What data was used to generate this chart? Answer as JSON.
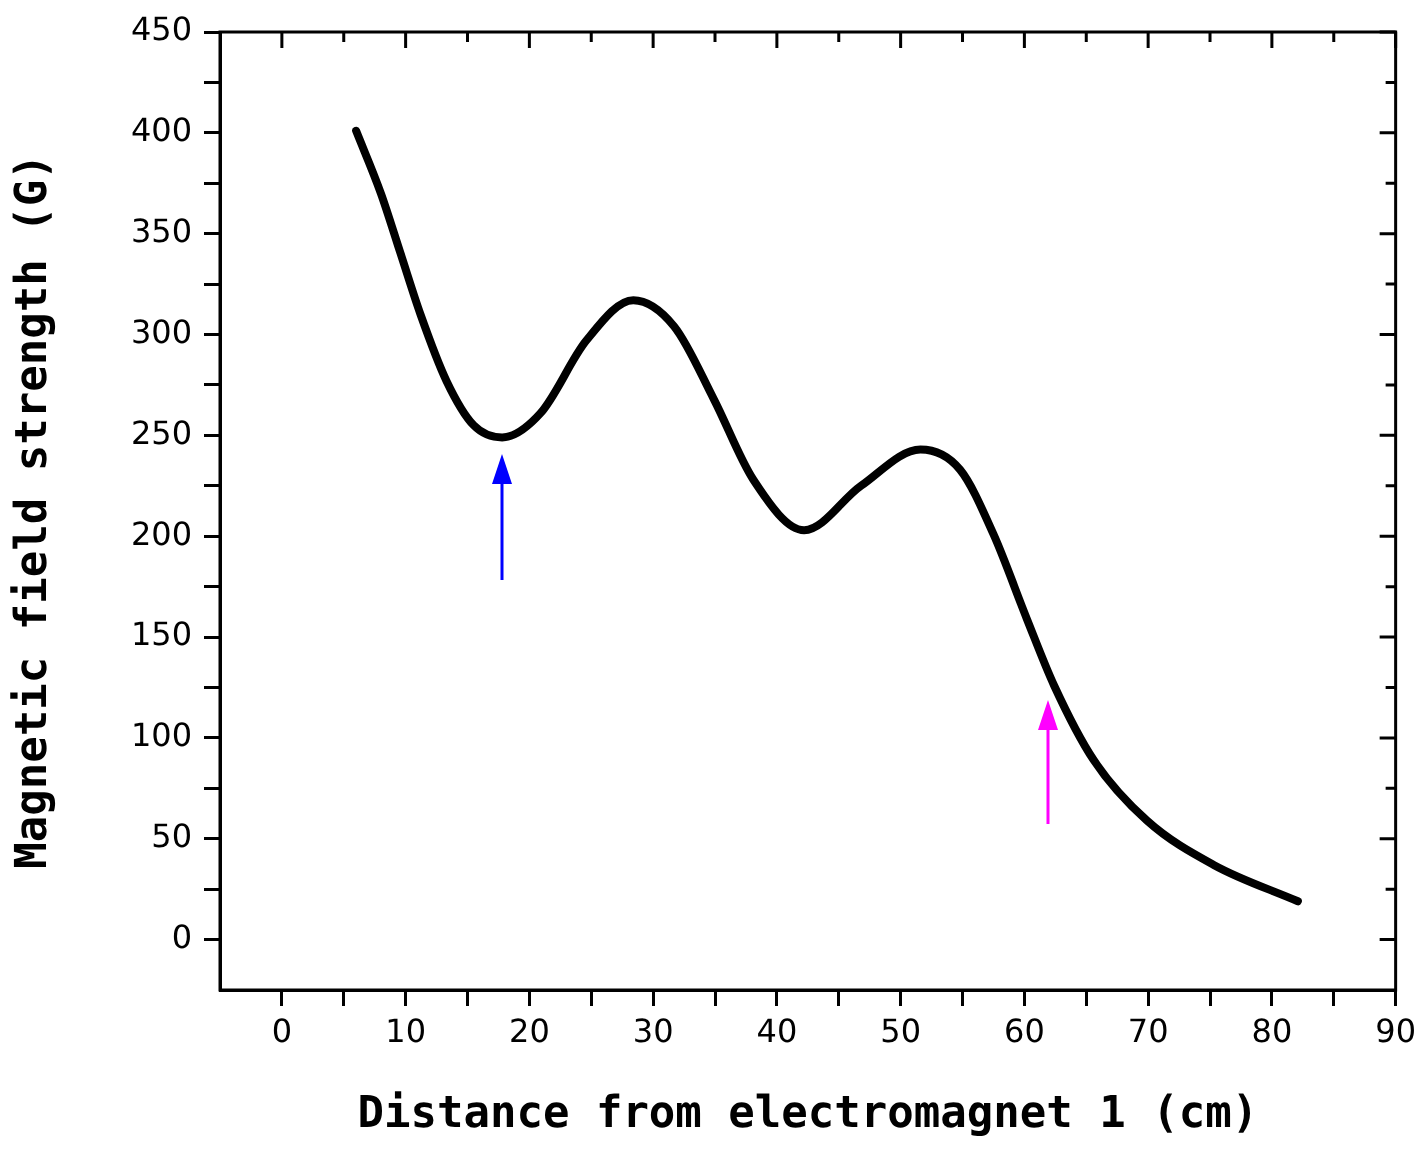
{
  "chart_data": {
    "type": "line",
    "xlabel": "Distance from electromagnet 1 (cm)",
    "ylabel": "Magnetic field strength (G)",
    "x": [
      6.0,
      8.0,
      9.6,
      11.2,
      13.3,
      15.5,
      17.8,
      20.9,
      24.6,
      28.4,
      31.7,
      34.9,
      38.1,
      42.2,
      46.8,
      51.6,
      54.8,
      57.5,
      60.2,
      62.4,
      65.6,
      69.9,
      75.3,
      82.1
    ],
    "series": [
      {
        "color": "#000000",
        "values": [
          401,
          370,
          340,
          310,
          277,
          255,
          249,
          261,
          297,
          317,
          304,
          268,
          228,
          203,
          225,
          243,
          233,
          201,
          159,
          126,
          89,
          59,
          37,
          19
        ]
      }
    ],
    "xlim": [
      -5,
      90
    ],
    "ylim": [
      -25,
      450
    ],
    "xticks": [
      0,
      {
        "value": 5,
        "label": null
      },
      10,
      {
        "value": 15,
        "label": null
      },
      20,
      {
        "value": 25,
        "label": null
      },
      30,
      {
        "value": 35,
        "label": null
      },
      40,
      {
        "value": 45,
        "label": null
      },
      50,
      {
        "value": 55,
        "label": null
      },
      60,
      {
        "value": 65,
        "label": null
      },
      70,
      {
        "value": 75,
        "label": null
      },
      80,
      {
        "value": 85,
        "label": null
      },
      90
    ],
    "yticks": [
      0,
      {
        "value": 25,
        "label": null
      },
      50,
      {
        "value": 75,
        "label": null
      },
      100,
      {
        "value": 125,
        "label": null
      },
      150,
      {
        "value": 175,
        "label": null
      },
      200,
      {
        "value": 225,
        "label": null
      },
      250,
      {
        "value": 275,
        "label": null
      },
      300,
      {
        "value": 325,
        "label": null
      },
      350,
      {
        "value": 375,
        "label": null
      },
      400,
      {
        "value": 425,
        "label": null
      },
      450
    ],
    "marker": "none",
    "line_style": "solid"
  }
}
